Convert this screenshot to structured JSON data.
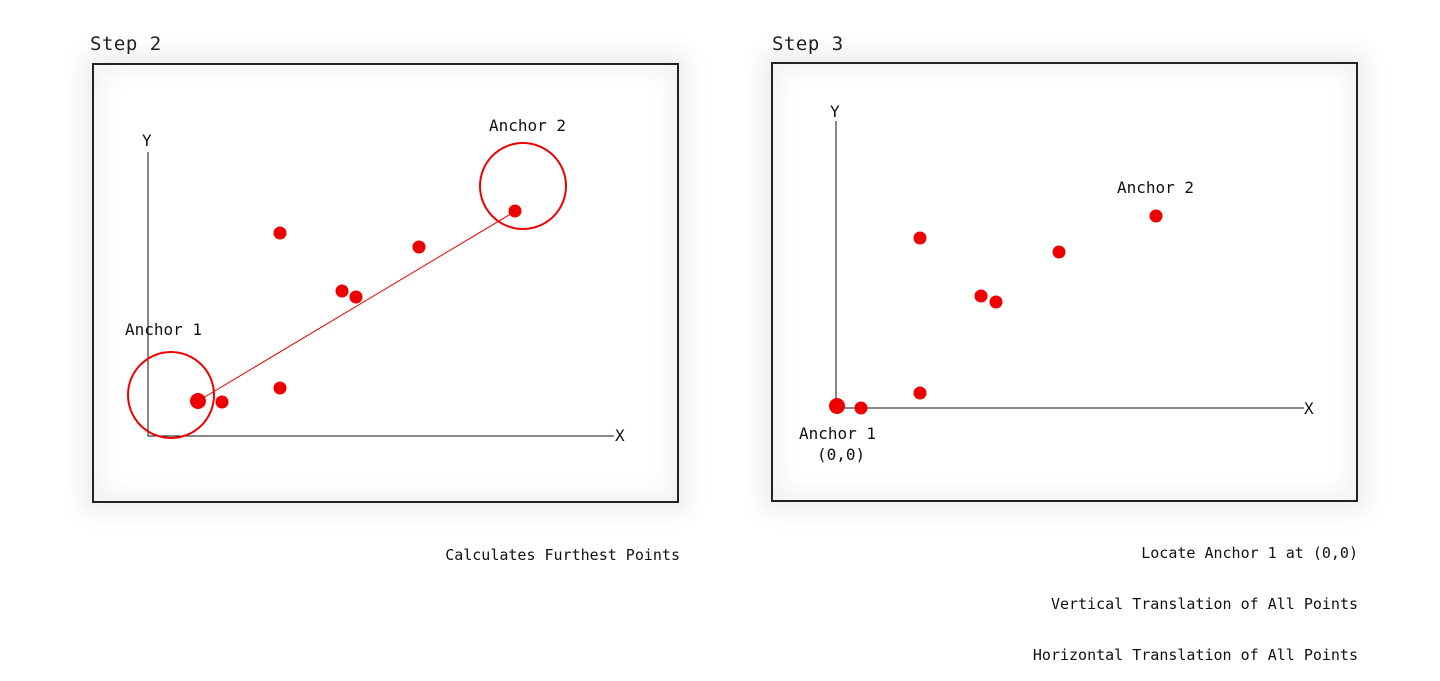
{
  "colors": {
    "accent": "#ee0000",
    "axis": "#111111",
    "frame": "#222222"
  },
  "panels": [
    {
      "title": "Step 2",
      "axes": {
        "x_label": "X",
        "y_label": "Y"
      },
      "anchor1_label": "Anchor 1",
      "anchor2_label": "Anchor 2",
      "caption": [
        "Calculates Furthest Points"
      ]
    },
    {
      "title": "Step 3",
      "axes": {
        "x_label": "X",
        "y_label": "Y"
      },
      "anchor1_label": "Anchor 1",
      "anchor1_coord": "(0,0)",
      "anchor2_label": "Anchor 2",
      "caption": [
        "Locate Anchor 1 at (0,0)",
        "Vertical Translation of All Points",
        "Horizontal Translation of All Points"
      ]
    }
  ]
}
